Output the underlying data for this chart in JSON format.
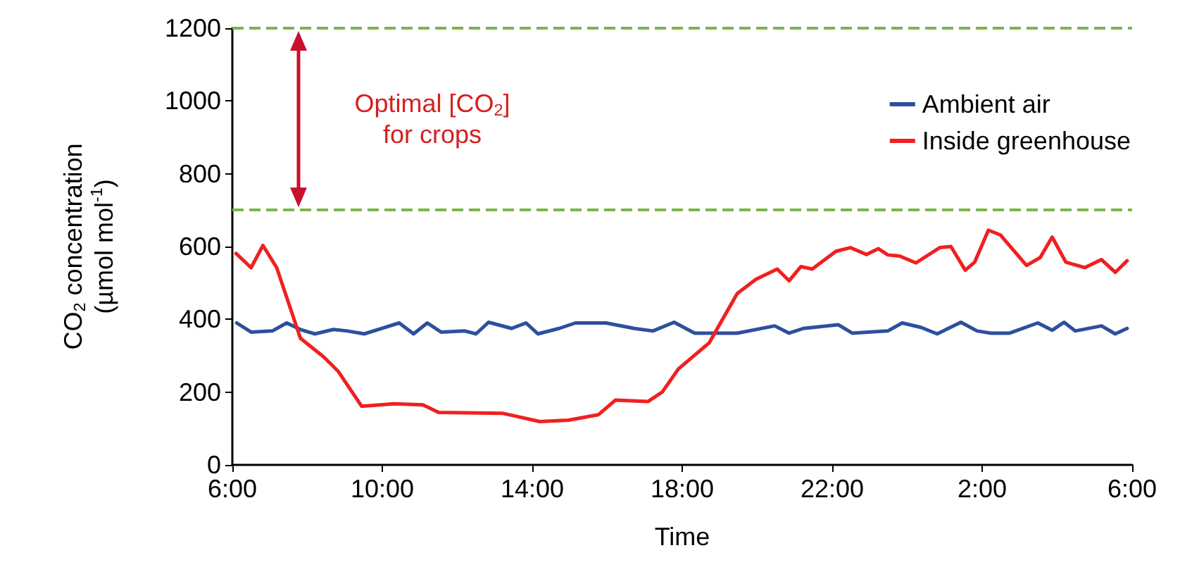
{
  "chart_data": {
    "type": "line",
    "xlabel": "Time",
    "ylabel": "CO$_{2}$ concentration\n(µmol mol$^{-1}$)",
    "annotations": [
      "Optimal [CO$_{2}$]\nfor crops"
    ],
    "xlim": [
      "2000-01-01T06:00",
      "2000-01-02T06:00"
    ],
    "xticks": [
      {
        "value": "2000-01-01T06:00",
        "label": "6:00"
      },
      {
        "value": "2000-01-01T10:00",
        "label": "10:00"
      },
      {
        "value": "2000-01-01T14:00",
        "label": "14:00"
      },
      {
        "value": "2000-01-01T18:00",
        "label": "18:00"
      },
      {
        "value": "2000-01-01T22:00",
        "label": "22:00"
      },
      {
        "value": "2000-01-02T02:00",
        "label": "2:00"
      },
      {
        "value": "2000-01-02T06:00",
        "label": "6:00"
      }
    ],
    "ylim": [
      0,
      1200
    ],
    "yticks": [
      0,
      200,
      400,
      600,
      800,
      1000,
      1200
    ],
    "grid": false,
    "legend": "top right",
    "marker": "none",
    "line_style": "solid",
    "ref_lines": [
      {
        "axis": "y",
        "value": 1200,
        "color": "#7ab648",
        "line_style": "dashed"
      },
      {
        "axis": "y",
        "value": 700,
        "color": "#7ab648",
        "line_style": "dashed"
      }
    ],
    "series": [
      {
        "name": "Ambient air",
        "color": "#2e4f9e",
        "x": [
          "2000-01-01T06:07",
          "2000-01-01T06:30",
          "2000-01-01T07:04",
          "2000-01-01T07:27",
          "2000-01-01T07:49",
          "2000-01-01T08:12",
          "2000-01-01T08:42",
          "2000-01-01T09:04",
          "2000-01-01T09:31",
          "2000-01-01T10:05",
          "2000-01-01T10:27",
          "2000-01-01T10:50",
          "2000-01-01T11:12",
          "2000-01-01T11:34",
          "2000-01-01T12:12",
          "2000-01-01T12:30",
          "2000-01-01T12:50",
          "2000-01-01T13:27",
          "2000-01-01T13:50",
          "2000-01-01T14:09",
          "2000-01-01T14:43",
          "2000-01-01T15:09",
          "2000-01-01T15:58",
          "2000-01-01T16:43",
          "2000-01-01T17:13",
          "2000-01-01T17:47",
          "2000-01-01T18:20",
          "2000-01-01T18:51",
          "2000-01-01T19:28",
          "2000-01-01T20:28",
          "2000-01-01T20:51",
          "2000-01-01T21:14",
          "2000-01-01T22:10",
          "2000-01-01T22:32",
          "2000-01-01T23:29",
          "2000-01-01T23:52",
          "2000-01-02T00:22",
          "2000-01-02T00:48",
          "2000-01-02T01:26",
          "2000-01-02T01:52",
          "2000-01-02T02:14",
          "2000-01-02T02:44",
          "2000-01-02T03:29",
          "2000-01-02T03:52",
          "2000-01-02T04:11",
          "2000-01-02T04:29",
          "2000-01-02T05:11",
          "2000-01-02T05:33",
          "2000-01-02T05:52"
        ],
        "values": [
          390,
          365,
          368,
          390,
          372,
          360,
          372,
          368,
          360,
          378,
          390,
          360,
          390,
          365,
          368,
          360,
          392,
          375,
          390,
          360,
          375,
          390,
          390,
          375,
          368,
          392,
          362,
          362,
          362,
          382,
          362,
          375,
          385,
          362,
          368,
          390,
          378,
          360,
          392,
          368,
          362,
          362,
          390,
          370,
          392,
          368,
          382,
          360,
          375
        ]
      },
      {
        "name": "Inside greenhouse",
        "color": "#f02020",
        "x": [
          "2000-01-01T06:06",
          "2000-01-01T06:30",
          "2000-01-01T06:49",
          "2000-01-01T07:11",
          "2000-01-01T07:49",
          "2000-01-01T08:26",
          "2000-01-01T08:49",
          "2000-01-01T09:27",
          "2000-01-01T10:19",
          "2000-01-01T11:05",
          "2000-01-01T11:30",
          "2000-01-01T13:12",
          "2000-01-01T14:12",
          "2000-01-01T14:58",
          "2000-01-01T15:46",
          "2000-01-01T16:13",
          "2000-01-01T17:05",
          "2000-01-01T17:28",
          "2000-01-01T17:54",
          "2000-01-01T18:43",
          "2000-01-01T19:28",
          "2000-01-01T19:58",
          "2000-01-01T20:32",
          "2000-01-01T20:51",
          "2000-01-01T21:10",
          "2000-01-01T21:28",
          "2000-01-01T22:06",
          "2000-01-01T22:29",
          "2000-01-01T22:55",
          "2000-01-01T23:14",
          "2000-01-01T23:29",
          "2000-01-01T23:48",
          "2000-01-02T00:14",
          "2000-01-02T00:52",
          "2000-01-02T01:10",
          "2000-01-02T01:33",
          "2000-01-02T01:48",
          "2000-01-02T02:10",
          "2000-01-02T02:29",
          "2000-01-02T03:11",
          "2000-01-02T03:33",
          "2000-01-02T03:52",
          "2000-01-02T04:14",
          "2000-01-02T04:44",
          "2000-01-02T05:11",
          "2000-01-02T05:33",
          "2000-01-02T05:52"
        ],
        "values": [
          581,
          542,
          603,
          542,
          348,
          297,
          258,
          161,
          168,
          165,
          144,
          142,
          119,
          123,
          138,
          178,
          174,
          200,
          264,
          335,
          471,
          510,
          538,
          506,
          545,
          538,
          587,
          597,
          578,
          594,
          577,
          574,
          555,
          597,
          600,
          535,
          557,
          645,
          632,
          548,
          570,
          626,
          557,
          542,
          564,
          529,
          561
        ]
      }
    ]
  }
}
